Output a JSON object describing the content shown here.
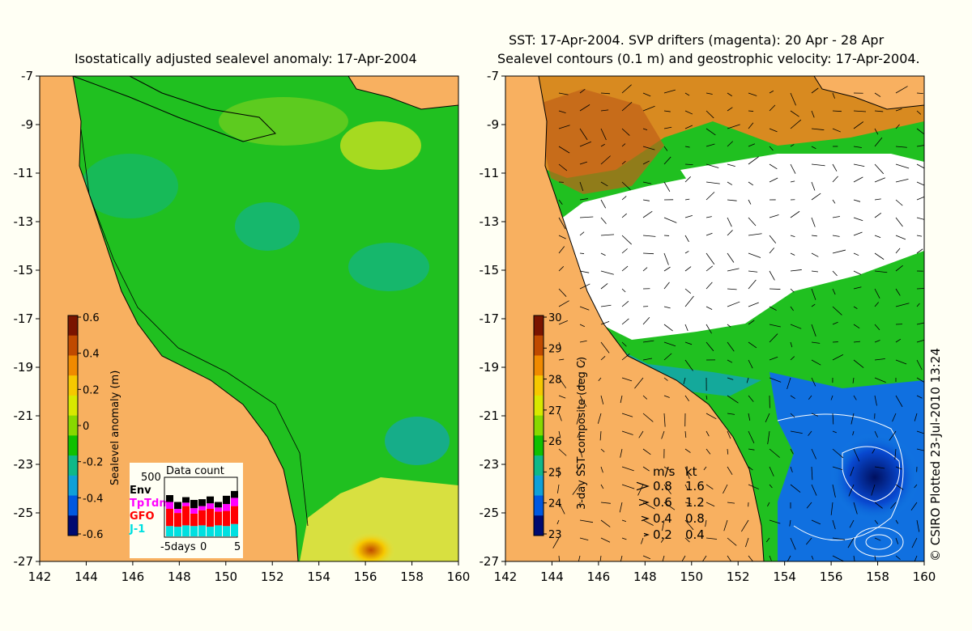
{
  "left_panel": {
    "title": "Isostatically adjusted sealevel anomaly: 17-Apr-2004",
    "colorbar_label": "Sealevel anomaly (m)",
    "colorbar_ticks": [
      "0.6",
      "0.4",
      "0.2",
      "0",
      "-0.2",
      "-0.4",
      "-0.6"
    ],
    "colorbar_colors": [
      "#7a1400",
      "#c04a00",
      "#f08a00",
      "#f6c800",
      "#d8e800",
      "#88d800",
      "#10c000",
      "#10b888",
      "#10a0d8",
      "#0058e0",
      "#000a70"
    ],
    "data_count": {
      "title": "Data count",
      "max_label": "500",
      "legend": [
        {
          "label": "Env",
          "color": "#000000"
        },
        {
          "label": "TpTdm",
          "color": "#ff00ff"
        },
        {
          "label": "GFO",
          "color": "#ff0000"
        },
        {
          "label": "J-1",
          "color": "#00e0e0"
        }
      ],
      "x_ticks": [
        "-5days",
        "0",
        "5"
      ],
      "bars": [
        {
          "env": 10,
          "tp": 10,
          "gfo": 25,
          "j1": 15
        },
        {
          "env": 10,
          "tp": 6,
          "gfo": 20,
          "j1": 14
        },
        {
          "env": 8,
          "tp": 5,
          "gfo": 28,
          "j1": 16
        },
        {
          "env": 12,
          "tp": 8,
          "gfo": 18,
          "j1": 15
        },
        {
          "env": 10,
          "tp": 6,
          "gfo": 22,
          "j1": 16
        },
        {
          "env": 10,
          "tp": 8,
          "gfo": 26,
          "j1": 14
        },
        {
          "env": 8,
          "tp": 6,
          "gfo": 20,
          "j1": 16
        },
        {
          "env": 12,
          "tp": 10,
          "gfo": 22,
          "j1": 15
        },
        {
          "env": 10,
          "tp": 12,
          "gfo": 26,
          "j1": 18
        }
      ]
    }
  },
  "right_panel": {
    "title_line1": "SST: 17-Apr-2004. SVP drifters (magenta): 20 Apr - 28 Apr",
    "title_line2": "Sealevel contours (0.1 m) and geostrophic velocity: 17-Apr-2004.",
    "colorbar_label": "3-day SST composite (deg C)",
    "colorbar_ticks": [
      "30",
      "29",
      "28",
      "27",
      "26",
      "25",
      "24",
      "23"
    ],
    "colorbar_colors": [
      "#7a1400",
      "#c04a00",
      "#f08a00",
      "#f6c800",
      "#d8e800",
      "#88d800",
      "#10c000",
      "#10b888",
      "#10a0d8",
      "#0058e0",
      "#000a70"
    ],
    "speed_legend": {
      "unit_ms": "m/s",
      "unit_kt": "kt",
      "rows": [
        {
          "ms": "0.8",
          "kt": "1.6"
        },
        {
          "ms": "0.6",
          "kt": "1.2"
        },
        {
          "ms": "0.4",
          "kt": "0.8"
        },
        {
          "ms": "0.2",
          "kt": "0.4"
        }
      ]
    }
  },
  "axes": {
    "lon_ticks": [
      "142",
      "144",
      "146",
      "148",
      "150",
      "152",
      "154",
      "156",
      "158",
      "160"
    ],
    "lat_ticks": [
      "-7",
      "-9",
      "-11",
      "-13",
      "-15",
      "-17",
      "-19",
      "-21",
      "-23",
      "-25",
      "-27"
    ]
  },
  "credit": "© CSIRO Plotted 23-Jul-2010 13:24",
  "colors": {
    "land": "#f8b060",
    "background": "#fffff4",
    "ocean_green": "#20c020",
    "cloud": "#ffffff"
  }
}
